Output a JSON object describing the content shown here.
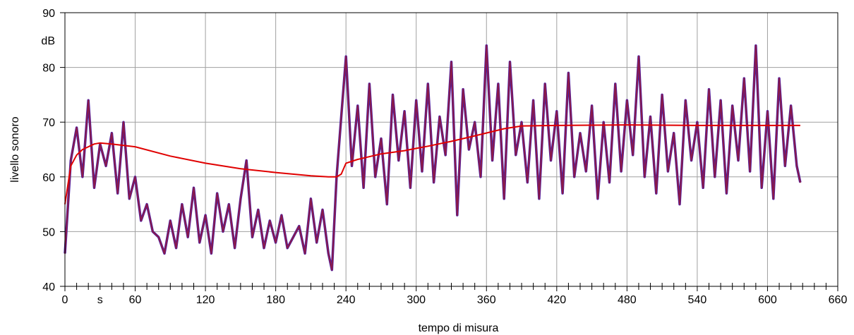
{
  "chart_data": {
    "type": "line",
    "xlabel": "tempo di misura",
    "ylabel": "livello sonoro",
    "x_unit": "s",
    "y_unit": "dB",
    "xlim": [
      0,
      660
    ],
    "ylim": [
      40,
      90
    ],
    "x_ticks": [
      "0",
      "60",
      "120",
      "180",
      "240",
      "300",
      "360",
      "420",
      "480",
      "540",
      "600",
      "660"
    ],
    "y_ticks": [
      "40",
      "50",
      "60",
      "70",
      "80",
      "90"
    ],
    "grid": true,
    "colors": {
      "level": "#8B1A4A",
      "level_edge": "#4B1FA8",
      "leq": "#E00000",
      "grid": "#A0A0A0"
    },
    "series": [
      {
        "role": "instantaneous",
        "x": [
          0,
          5,
          10,
          15,
          20,
          25,
          30,
          35,
          40,
          45,
          50,
          55,
          60,
          65,
          70,
          75,
          80,
          85,
          90,
          95,
          100,
          105,
          110,
          115,
          120,
          125,
          130,
          135,
          140,
          145,
          150,
          155,
          160,
          165,
          170,
          175,
          180,
          185,
          190,
          195,
          200,
          205,
          210,
          215,
          220,
          225,
          228,
          232,
          236,
          240,
          245,
          250,
          255,
          260,
          265,
          270,
          275,
          280,
          285,
          290,
          295,
          300,
          305,
          310,
          315,
          320,
          325,
          330,
          335,
          340,
          345,
          350,
          355,
          360,
          365,
          370,
          375,
          380,
          385,
          390,
          395,
          400,
          405,
          410,
          415,
          420,
          425,
          430,
          435,
          440,
          445,
          450,
          455,
          460,
          465,
          470,
          475,
          480,
          485,
          490,
          495,
          500,
          505,
          510,
          515,
          520,
          525,
          530,
          535,
          540,
          545,
          550,
          555,
          560,
          565,
          570,
          575,
          580,
          585,
          590,
          595,
          600,
          605,
          610,
          615,
          620,
          625,
          628
        ],
        "y": [
          46,
          63,
          69,
          60,
          74,
          58,
          66,
          62,
          68,
          57,
          70,
          56,
          60,
          52,
          55,
          50,
          49,
          46,
          52,
          47,
          55,
          49,
          58,
          48,
          53,
          46,
          57,
          50,
          55,
          47,
          56,
          63,
          49,
          54,
          47,
          52,
          48,
          53,
          47,
          49,
          51,
          46,
          56,
          48,
          54,
          46,
          43,
          60,
          71,
          82,
          62,
          73,
          58,
          77,
          60,
          67,
          55,
          75,
          63,
          72,
          58,
          74,
          61,
          77,
          59,
          71,
          64,
          81,
          53,
          76,
          65,
          70,
          60,
          84,
          63,
          77,
          56,
          81,
          64,
          70,
          59,
          74,
          56,
          77,
          63,
          72,
          57,
          79,
          60,
          68,
          61,
          73,
          56,
          70,
          59,
          77,
          61,
          74,
          64,
          82,
          60,
          71,
          57,
          75,
          61,
          68,
          55,
          74,
          63,
          70,
          58,
          76,
          60,
          74,
          57,
          73,
          63,
          78,
          61,
          84,
          58,
          72,
          56,
          78,
          62,
          73,
          62,
          59
        ]
      },
      {
        "role": "equivalent",
        "x": [
          0,
          5,
          10,
          15,
          20,
          25,
          30,
          40,
          60,
          90,
          120,
          150,
          180,
          210,
          225,
          232,
          236,
          240,
          250,
          270,
          290,
          300,
          310,
          330,
          350,
          375,
          390,
          420,
          480,
          540,
          600,
          628
        ],
        "y": [
          55,
          62,
          64,
          65,
          65.5,
          66,
          66.2,
          66,
          65.5,
          63.8,
          62.5,
          61.5,
          60.8,
          60.2,
          60,
          60,
          60.5,
          62.5,
          63.2,
          64.2,
          64.8,
          65.2,
          65.6,
          66.5,
          67.5,
          68.8,
          69.3,
          69.4,
          69.5,
          69.4,
          69.4,
          69.4
        ]
      }
    ]
  }
}
